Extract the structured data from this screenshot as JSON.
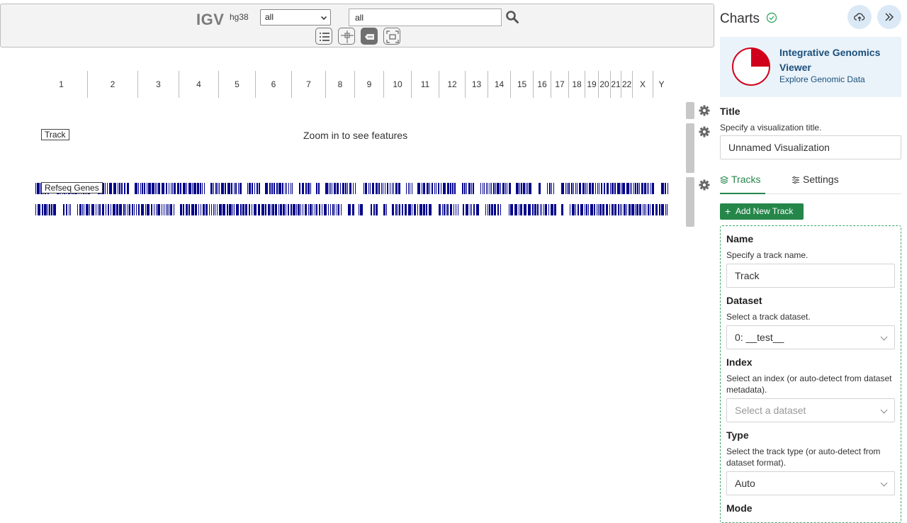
{
  "igv": {
    "logo": "IGV",
    "genome": "hg38",
    "chromosome_select": "all",
    "locus": "all",
    "chromosomes": [
      "1",
      "2",
      "3",
      "4",
      "5",
      "6",
      "7",
      "8",
      "9",
      "10",
      "11",
      "12",
      "13",
      "14",
      "15",
      "16",
      "17",
      "18",
      "19",
      "20",
      "21",
      "22",
      "X",
      "Y"
    ],
    "tracks": [
      {
        "label": "Track",
        "message": "Zoom in to see features"
      },
      {
        "label": "Refseq Genes"
      }
    ],
    "gene_color": "#00008B"
  },
  "panel": {
    "title": "Charts",
    "card": {
      "title": "Integrative Genomics Viewer",
      "subtitle": "Explore Genomic Data",
      "accent": "#d0021b"
    },
    "viz_title": {
      "label": "Title",
      "help": "Specify a visualization title.",
      "value": "Unnamed Visualization"
    },
    "tabs": [
      {
        "label": "Tracks",
        "active": true
      },
      {
        "label": "Settings",
        "active": false
      }
    ],
    "add_track_label": "Add New Track",
    "form": {
      "name": {
        "label": "Name",
        "help": "Specify a track name.",
        "value": "Track"
      },
      "dataset": {
        "label": "Dataset",
        "help": "Select a track dataset.",
        "value": "0: __test__"
      },
      "index": {
        "label": "Index",
        "help": "Select an index (or auto-detect from dataset metadata).",
        "placeholder": "Select a dataset"
      },
      "type": {
        "label": "Type",
        "help": "Select the track type (or auto-detect from dataset format).",
        "value": "Auto"
      },
      "mode": {
        "label": "Mode"
      }
    },
    "accent_green": "#25864a"
  }
}
